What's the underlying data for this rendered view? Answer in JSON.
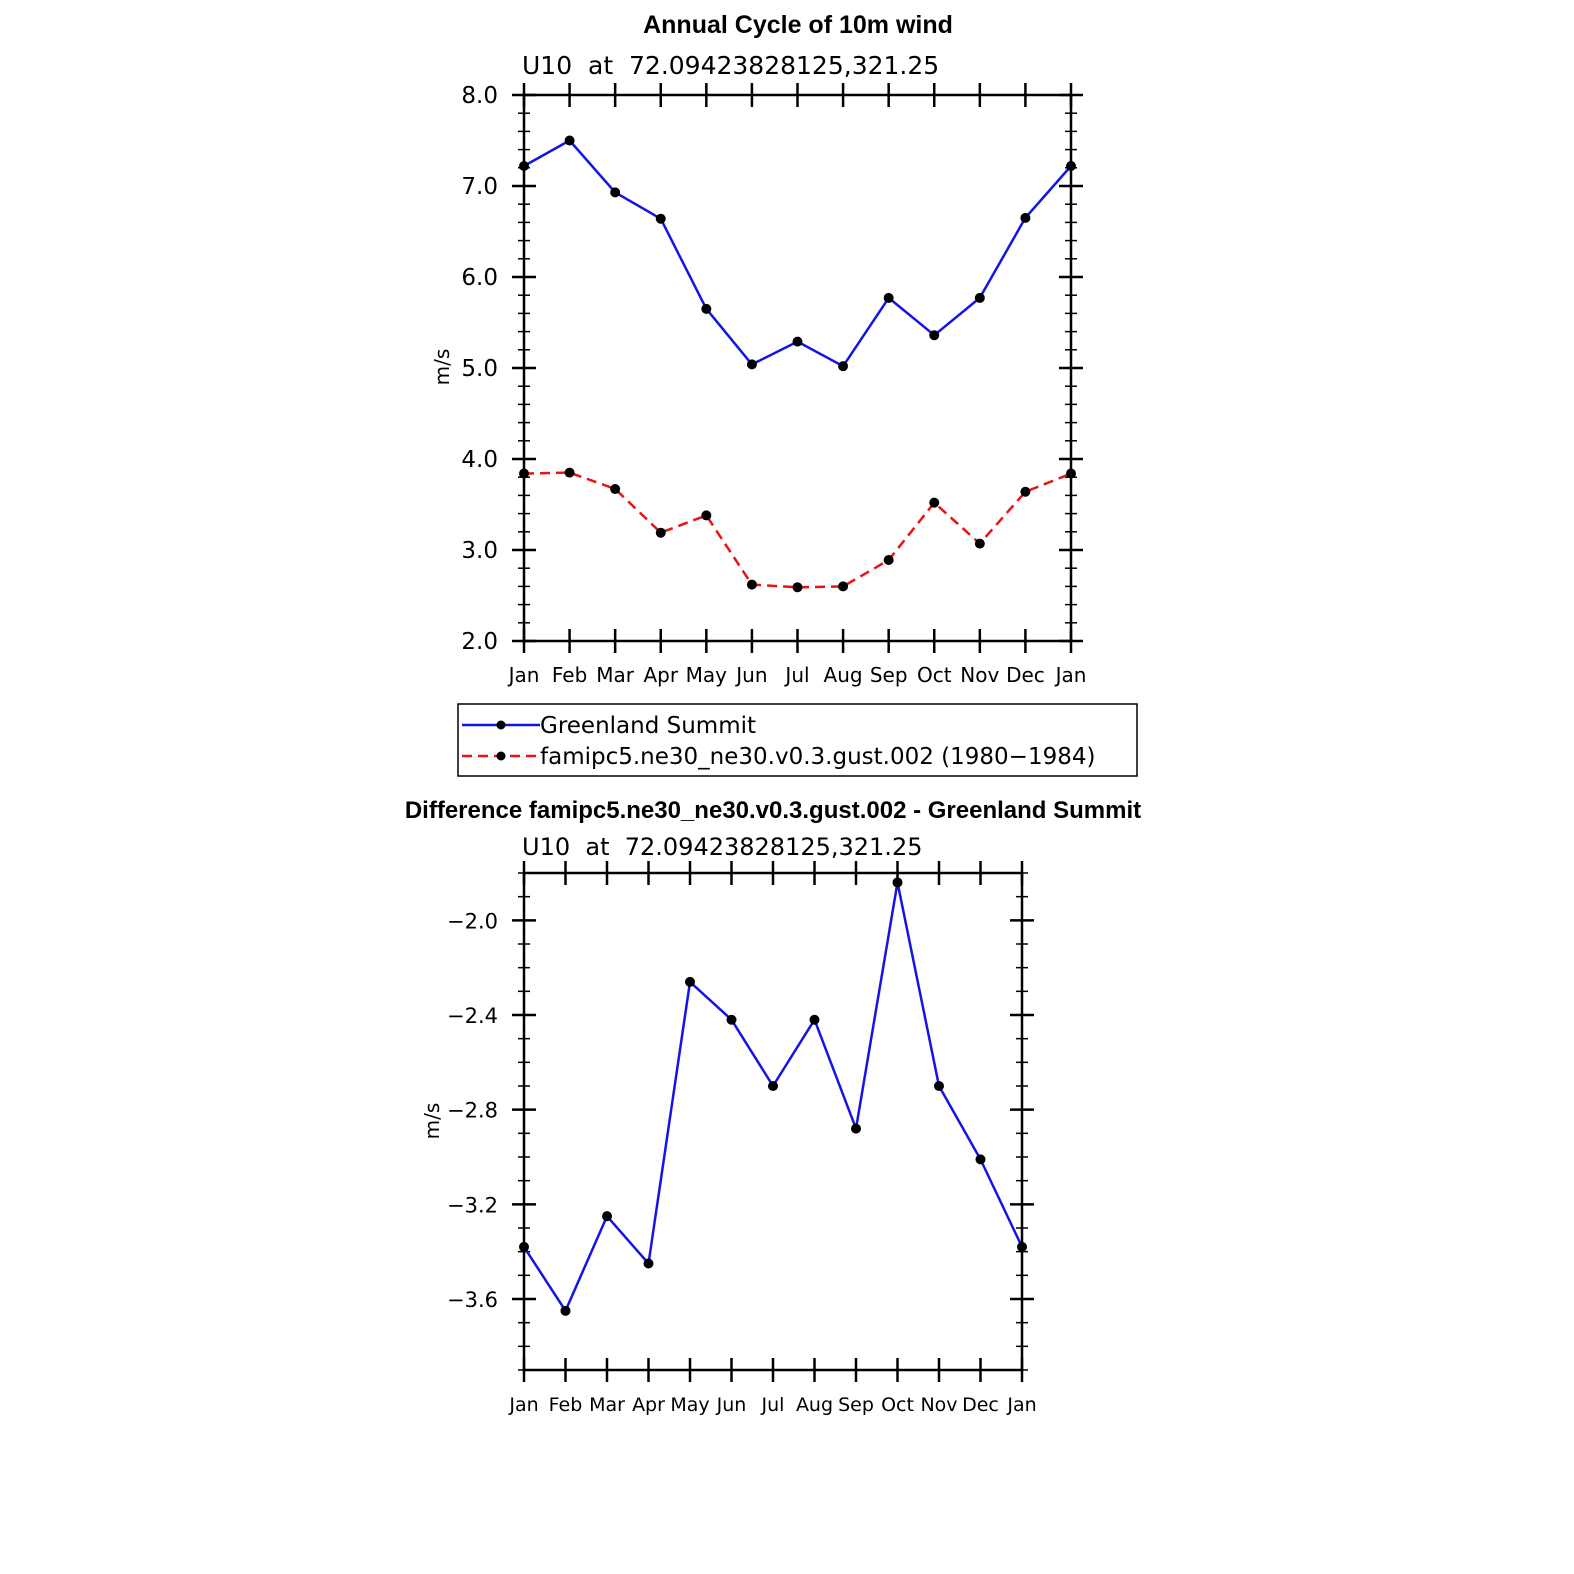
{
  "chart_data": [
    {
      "type": "line",
      "title": "Annual Cycle of 10m wind",
      "subtitle": "U10  at  72.09423828125,321.25",
      "xlabel": "",
      "ylabel": "m/s",
      "categories": [
        "Jan",
        "Feb",
        "Mar",
        "Apr",
        "May",
        "Jun",
        "Jul",
        "Aug",
        "Sep",
        "Oct",
        "Nov",
        "Dec",
        "Jan"
      ],
      "yticks": [
        "2.0",
        "3.0",
        "4.0",
        "5.0",
        "6.0",
        "7.0",
        "8.0"
      ],
      "ylim": [
        2.0,
        8.0
      ],
      "grid": false,
      "legend": {
        "position": "bottom",
        "entries": [
          "Greenland Summit",
          "famipc5.ne30_ne30.v0.3.gust.002 (1980−1984)"
        ]
      },
      "series": [
        {
          "name": "Greenland Summit",
          "color": "#1414e6",
          "style": "solid",
          "values": [
            7.22,
            7.5,
            6.93,
            6.64,
            5.65,
            5.04,
            5.29,
            5.02,
            5.77,
            5.36,
            5.77,
            6.65,
            7.22
          ]
        },
        {
          "name": "famipc5.ne30_ne30.v0.3.gust.002 (1980−1984)",
          "color": "#e61414",
          "style": "dashed",
          "values": [
            3.84,
            3.85,
            3.67,
            3.19,
            3.38,
            2.62,
            2.59,
            2.6,
            2.89,
            3.52,
            3.07,
            3.64,
            3.84
          ]
        }
      ]
    },
    {
      "type": "line",
      "title": "Difference famipc5.ne30_ne30.v0.3.gust.002 - Greenland Summit",
      "subtitle": "U10  at  72.09423828125,321.25",
      "xlabel": "",
      "ylabel": "m/s",
      "categories": [
        "Jan",
        "Feb",
        "Mar",
        "Apr",
        "May",
        "Jun",
        "Jul",
        "Aug",
        "Sep",
        "Oct",
        "Nov",
        "Dec",
        "Jan"
      ],
      "yticks": [
        "−2.0",
        "−2.4",
        "−2.8",
        "−3.2",
        "−3.6"
      ],
      "ylim": [
        -3.9,
        -1.8
      ],
      "grid": false,
      "series": [
        {
          "color": "#1414e6",
          "style": "solid",
          "values": [
            -3.38,
            -3.65,
            -3.25,
            -3.45,
            -2.26,
            -2.42,
            -2.7,
            -2.42,
            -2.88,
            -1.84,
            -2.7,
            -3.01,
            -3.38
          ]
        }
      ]
    }
  ]
}
